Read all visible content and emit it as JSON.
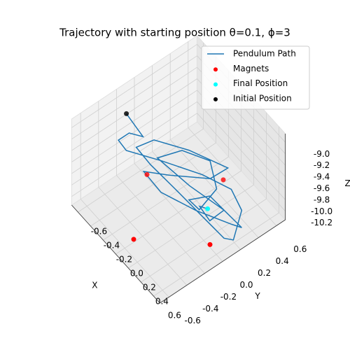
{
  "chart_data": {
    "type": "line3d",
    "title": "Trajectory with starting position θ=0.1, ϕ=3",
    "xlabel": "X",
    "ylabel": "Y",
    "zlabel": "Z",
    "xlim": [
      -0.7,
      0.7
    ],
    "ylim": [
      -0.7,
      0.7
    ],
    "zlim": [
      -10.35,
      -8.85
    ],
    "xticks": [
      -0.6,
      -0.4,
      -0.2,
      {
        "value": 0,
        "label": "0.0"
      },
      0.2,
      0.4,
      0.6
    ],
    "yticks": [
      -0.6,
      -0.4,
      -0.2,
      {
        "value": 0,
        "label": "0.0"
      },
      0.2,
      0.4,
      0.6
    ],
    "zticks": [
      {
        "value": -9,
        "label": "-9.0"
      },
      -9.2,
      -9.4,
      -9.6,
      -9.8,
      {
        "value": -10,
        "label": "-10.0"
      },
      -10.2
    ],
    "grid": true,
    "legend": "upper right",
    "series": [
      {
        "name": "Pendulum Path",
        "kind": "line",
        "color": "#1f77b4",
        "x": [
          -0.5,
          -0.35,
          -0.67,
          -0.67,
          -0.53,
          -0.23,
          0.14,
          0.44,
          0.69,
          0.7,
          0.68,
          0.42,
          0.1,
          -0.26,
          -0.5,
          -0.46,
          -0.16,
          0.23,
          0.22,
          -0.06,
          -0.24,
          0.05,
          0.42,
          0.6,
          0.69,
          0.48,
          0.16,
          -0.28,
          -0.2,
          0.06,
          0.35,
          0.33,
          0.18,
          0.27,
          0.48,
          0.44,
          0.25,
          0.32
        ],
        "y": [
          -0.23,
          -0.15,
          -0.08,
          -0.2,
          -0.21,
          -0.03,
          0.17,
          0.28,
          0.22,
          0.12,
          0.03,
          -0.02,
          -0.11,
          -0.13,
          -0.12,
          0.05,
          0.23,
          0.39,
          0.2,
          -0.07,
          -0.22,
          -0.23,
          -0.1,
          0.17,
          0.22,
          0.17,
          0.01,
          -0.04,
          0.18,
          0.31,
          0.18,
          0,
          -0.01,
          0.16,
          0.17,
          0.04,
          0.06,
          0.1
        ],
        "z": [
          -9.0,
          -9.3,
          -9.7,
          -9.7,
          -9.7,
          -9.7,
          -9.7,
          -9.7,
          -9.7,
          -10.1,
          -10.0,
          -9.9,
          -9.7,
          -9.7,
          -9.7,
          -9.7,
          -9.7,
          -9.7,
          -9.7,
          -9.7,
          -9.7,
          -9.7,
          -9.7,
          -10.0,
          -10.0,
          -9.9,
          -9.7,
          -9.7,
          -9.7,
          -9.7,
          -9.7,
          -9.9,
          -9.9,
          -9.9,
          -9.9,
          -10.0,
          -10.0,
          -10.0
        ]
      },
      {
        "name": "Magnets",
        "kind": "scatter",
        "color": "red",
        "x": [
          0,
          0.5,
          -0.5,
          0
        ],
        "y": [
          -0.5,
          0,
          0,
          0.5
        ],
        "z": [
          -10.3,
          -10.3,
          -10.3,
          -10.3
        ]
      },
      {
        "name": "Final Position",
        "kind": "scatter",
        "color": "cyan",
        "x": [
          0.32
        ],
        "y": [
          0.1
        ],
        "z": [
          -10.0
        ]
      },
      {
        "name": "Initial Position",
        "kind": "scatter",
        "color": "black",
        "x": [
          -0.5
        ],
        "y": [
          -0.23
        ],
        "z": [
          -9.0
        ]
      }
    ]
  }
}
